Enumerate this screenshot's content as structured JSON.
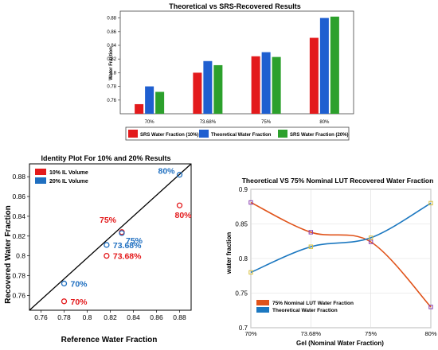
{
  "chart_data": [
    {
      "type": "bar",
      "title": "Theoretical vs SRS-Recovered Results",
      "xlabel": "",
      "ylabel": "Water Fraction",
      "categories": [
        "70%",
        "73.68%",
        "75%",
        "80%"
      ],
      "ylim": [
        0.74,
        0.89
      ],
      "yticks": [
        "0.76",
        "0.78",
        "0.8",
        "0.82",
        "0.84",
        "0.86",
        "0.88"
      ],
      "series": [
        {
          "name": "SRS Water Fraction (10%)",
          "color": "#e31a1c",
          "values": [
            0.754,
            0.8,
            0.824,
            0.851
          ]
        },
        {
          "name": "Theoretical Water Fraction",
          "color": "#1f5fd0",
          "values": [
            0.78,
            0.817,
            0.83,
            0.88
          ]
        },
        {
          "name": "SRS Water Fraction (20%)",
          "color": "#2ca02c",
          "values": [
            0.772,
            0.811,
            0.823,
            0.882
          ]
        }
      ],
      "legend": "bottom",
      "grid": false
    },
    {
      "type": "scatter",
      "title": "Identity Plot For 10% and 20% Results",
      "xlabel": "Reference Water Fraction",
      "ylabel": "Recovered Water Fraction",
      "xlim": [
        0.75,
        0.89
      ],
      "ylim": [
        0.745,
        0.893
      ],
      "xticks": [
        "0.76",
        "0.78",
        "0.8",
        "0.82",
        "0.84",
        "0.86",
        "0.88"
      ],
      "yticks": [
        "0.76",
        "0.78",
        "0.8",
        "0.82",
        "0.84",
        "0.86",
        "0.88"
      ],
      "identity_line": true,
      "series": [
        {
          "name": "10% IL Volume",
          "color": "#e31a1c",
          "points": [
            {
              "x": 0.78,
              "y": 0.754,
              "label": "70%"
            },
            {
              "x": 0.8168,
              "y": 0.8,
              "label": "73.68%"
            },
            {
              "x": 0.83,
              "y": 0.824,
              "label": "75%"
            },
            {
              "x": 0.88,
              "y": 0.851,
              "label": "80%"
            }
          ]
        },
        {
          "name": "20% IL Volume",
          "color": "#1f6fc0",
          "points": [
            {
              "x": 0.78,
              "y": 0.772,
              "label": "70%"
            },
            {
              "x": 0.8168,
              "y": 0.811,
              "label": "73.68%"
            },
            {
              "x": 0.83,
              "y": 0.823,
              "label": "75%"
            },
            {
              "x": 0.88,
              "y": 0.882,
              "label": "80%"
            }
          ]
        }
      ],
      "legend": "top-left",
      "grid": false
    },
    {
      "type": "line",
      "title": "Theoretical VS 75% Nominal LUT Recovered Water Fraction",
      "xlabel": "Gel (Nominal Water Fraction)",
      "ylabel": "water fraction",
      "categories": [
        "70%",
        "73.68%",
        "75%",
        "80%"
      ],
      "ylim": [
        0.7,
        0.9
      ],
      "yticks": [
        "0.7",
        "0.75",
        "0.8",
        "0.85",
        "0.9"
      ],
      "series": [
        {
          "name": "75% Nominal LUT Water Fraction",
          "color": "#e0531a",
          "values": [
            0.881,
            0.838,
            0.824,
            0.73
          ]
        },
        {
          "name": "Theoretical Water Fraction",
          "color": "#1c78c0",
          "values": [
            0.78,
            0.817,
            0.83,
            0.88
          ]
        }
      ],
      "legend": "bottom-left",
      "grid": true
    }
  ]
}
